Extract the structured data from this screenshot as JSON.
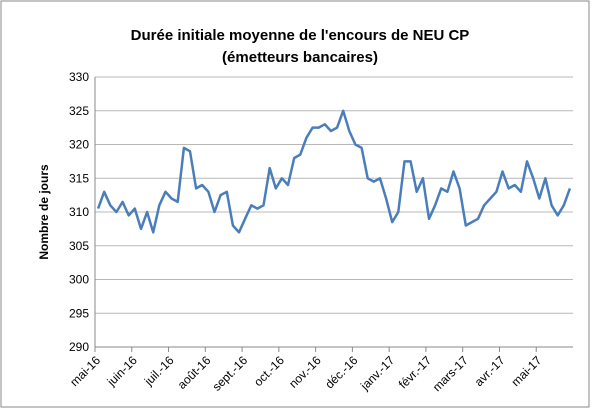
{
  "chart_data": {
    "type": "line",
    "title": [
      "Durée initiale moyenne de l'encours de NEU CP",
      "(émetteurs bancaires)"
    ],
    "y_label": "Nombre de jours",
    "categories": [
      "mai-16",
      null,
      null,
      null,
      null,
      null,
      "juin-16",
      null,
      null,
      null,
      null,
      null,
      "juil.-16",
      null,
      null,
      null,
      null,
      null,
      "août-16",
      null,
      null,
      null,
      null,
      null,
      "sept.-16",
      null,
      null,
      null,
      null,
      null,
      "oct.-16",
      null,
      null,
      null,
      null,
      null,
      "nov.-16",
      null,
      null,
      null,
      null,
      null,
      "déc.-16",
      null,
      null,
      null,
      null,
      null,
      "janv.-17",
      null,
      null,
      null,
      null,
      null,
      "févr.-17",
      null,
      null,
      null,
      null,
      null,
      "mars-17",
      null,
      null,
      null,
      null,
      null,
      "avr.-17",
      null,
      null,
      null,
      null,
      null,
      "mai-17",
      null,
      null,
      null,
      null,
      null
    ],
    "series": [
      {
        "name": "Durée initiale moyenne",
        "color": "#4a7ebb",
        "values": [
          310.5,
          313,
          311,
          310,
          311.5,
          309.5,
          310.5,
          307.5,
          310,
          307,
          311,
          313,
          312,
          311.5,
          319.5,
          319,
          313.5,
          314,
          313,
          310,
          312.5,
          313,
          308,
          307,
          309,
          311,
          310.5,
          311,
          316.5,
          313.5,
          315,
          314,
          318,
          318.5,
          321,
          322.5,
          322.5,
          323,
          322,
          322.5,
          325,
          322,
          320,
          319.5,
          315,
          314.5,
          315,
          312,
          308.5,
          310,
          317.5,
          317.5,
          313,
          315,
          309,
          311,
          313.5,
          313,
          316,
          313.5,
          308,
          308.5,
          309,
          311,
          312,
          313,
          316,
          313.5,
          314,
          313,
          317.5,
          315,
          312,
          315,
          311,
          309.5,
          311,
          313.5
        ]
      }
    ],
    "ylim": [
      290,
      330
    ],
    "yticks": [
      290,
      295,
      300,
      305,
      310,
      315,
      320,
      325,
      330
    ],
    "grid": true
  }
}
